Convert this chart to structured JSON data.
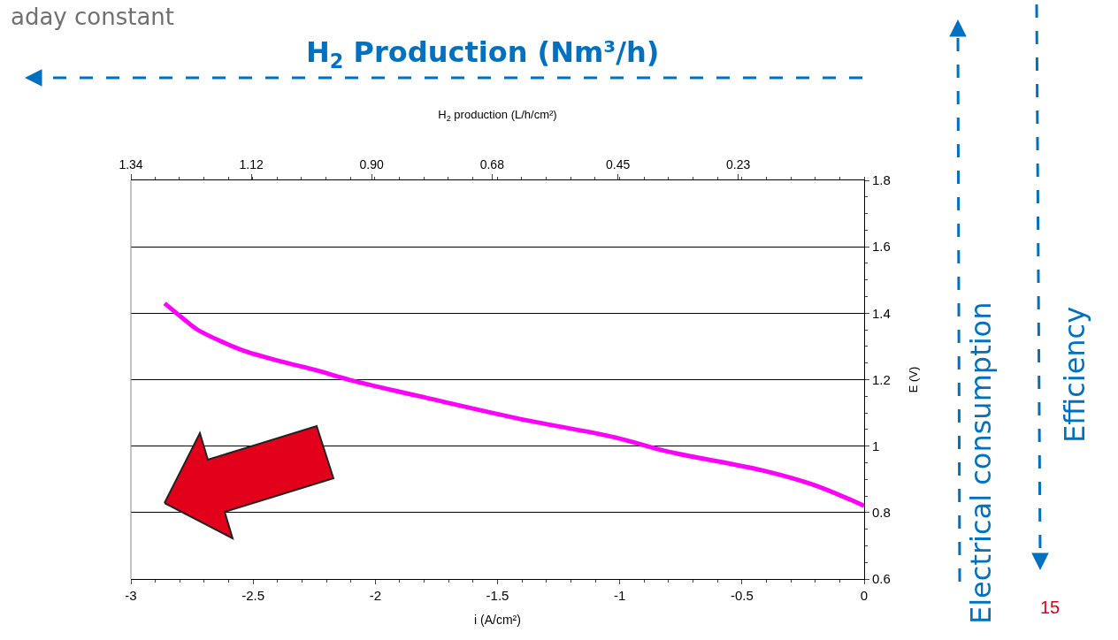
{
  "chart_data": {
    "type": "line",
    "title": "H$_{2}$ Production (Nm³/h)",
    "xlabel": "i (A/cm²)",
    "ylabel": "E (V)",
    "x2label": "H$_{2}$ production (L/h/cm²)",
    "annotations": [
      "Electrical consumption",
      "Efficiency",
      "aday constant",
      "15"
    ],
    "series": [
      {
        "color": "#ff00ff",
        "x": [
          -2.862,
          -2.788,
          -2.729,
          -2.627,
          -2.526,
          -2.385,
          -2.225,
          -2.104,
          -1.824,
          -1.422,
          -1.018,
          -0.818,
          -0.416,
          -0.213,
          -0.054,
          0
        ],
        "values": [
          1.43,
          1.385,
          1.351,
          1.314,
          1.284,
          1.255,
          1.225,
          1.199,
          1.151,
          1.084,
          1.026,
          0.986,
          0.927,
          0.885,
          0.838,
          0.82
        ]
      }
    ],
    "xlim": [
      -3,
      0
    ],
    "xticks": [
      -3,
      -2.5,
      -2,
      -1.5,
      -1,
      -0.5,
      0
    ],
    "ylim": [
      0.6,
      1.8
    ],
    "yticks": [
      0.6,
      0.8,
      1,
      1.2,
      1.4,
      1.6,
      1.8
    ],
    "x2lim": [
      1.34,
      0
    ],
    "x2ticks": [
      1.34,
      1.12,
      {
        "value": 0.9,
        "label": "0.90"
      },
      0.68,
      0.45,
      0.23
    ],
    "grid": "y",
    "marker": "none",
    "line_style": "solid"
  }
}
